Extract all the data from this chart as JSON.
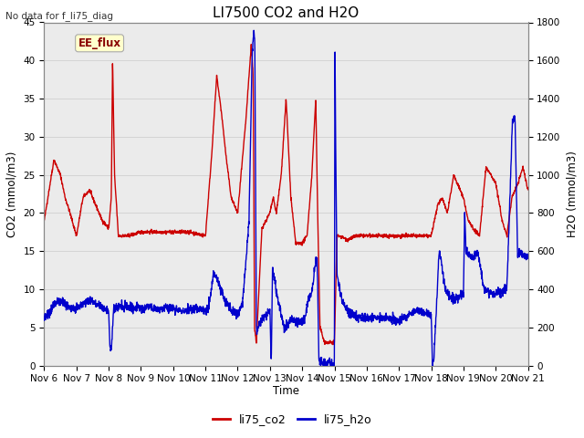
{
  "title": "LI7500 CO2 and H2O",
  "top_left_text": "No data for f_li75_diag",
  "xlabel": "Time",
  "ylabel_left": "CO2 (mmol/m3)",
  "ylabel_right": "H2O (mmol/m3)",
  "ylim_left": [
    0,
    45
  ],
  "ylim_right": [
    0,
    1800
  ],
  "yticks_left": [
    0,
    5,
    10,
    15,
    20,
    25,
    30,
    35,
    40,
    45
  ],
  "yticks_right": [
    0,
    200,
    400,
    600,
    800,
    1000,
    1200,
    1400,
    1600,
    1800
  ],
  "xtick_labels": [
    "Nov 6",
    "Nov 7",
    "Nov 8",
    "Nov 9",
    "Nov 10",
    "Nov 11",
    "Nov 12",
    "Nov 13",
    "Nov 14",
    "Nov 15",
    "Nov 16",
    "Nov 17",
    "Nov 18",
    "Nov 19",
    "Nov 20",
    "Nov 21"
  ],
  "co2_color": "#cc0000",
  "h2o_color": "#0000cc",
  "plot_bg": "#ebebeb",
  "ee_flux_label": "EE_flux",
  "ee_flux_bg": "#ffffcc",
  "ee_flux_border": "#aaaaaa",
  "ee_flux_text_color": "#880000",
  "legend_labels": [
    "li75_co2",
    "li75_h2o"
  ],
  "linewidth": 1.0,
  "title_fontsize": 11,
  "tick_fontsize": 7.5,
  "axis_label_fontsize": 8.5
}
